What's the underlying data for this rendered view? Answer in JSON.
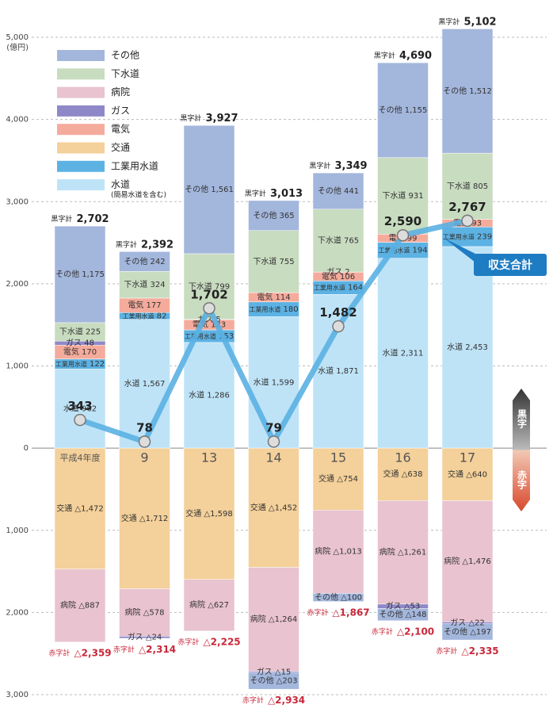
{
  "chart_data": {
    "type": "bar",
    "unit": "(億円)",
    "categories": [
      "平成4年度",
      "9",
      "13",
      "14",
      "15",
      "16",
      "17"
    ],
    "ylim": [
      -3000,
      5000
    ],
    "yticks": [
      {
        "value": 5000,
        "label": "5,000"
      },
      {
        "value": 4000,
        "label": "4,000"
      },
      {
        "value": 3000,
        "label": "3,000"
      },
      {
        "value": 2000,
        "label": "2,000"
      },
      {
        "value": 1000,
        "label": "1,000"
      },
      0,
      {
        "value": -1000,
        "label": "1,000"
      },
      {
        "value": -2000,
        "label": "2,000"
      },
      {
        "value": -3000,
        "label": "3,000"
      }
    ],
    "grid": true,
    "series": [
      {
        "name": "その他",
        "color": "#a3b6dc",
        "values": [
          1175,
          242,
          1561,
          365,
          441,
          1155,
          1512
        ],
        "value_labels": [
          "1,175",
          "242",
          "1,561",
          "365",
          "441",
          "1,155",
          "1,512"
        ],
        "deficit_values": [
          null,
          null,
          null,
          -203,
          -100,
          -148,
          -197
        ],
        "deficit_labels": [
          null,
          null,
          null,
          "△203",
          "△100",
          "△148",
          "△197"
        ]
      },
      {
        "name": "下水道",
        "color": "#c8dcc0",
        "values": [
          225,
          324,
          799,
          755,
          765,
          931,
          805
        ],
        "value_labels": [
          "225",
          "324",
          "799",
          "755",
          "765",
          "931",
          "805"
        ]
      },
      {
        "name": "病院",
        "color": "#e9c3cf",
        "deficit_values": [
          -887,
          -578,
          -627,
          -1264,
          -1013,
          -1261,
          -1476
        ],
        "deficit_labels": [
          "△887",
          "△578",
          "△627",
          "△1,264",
          "△1,013",
          "△1,261",
          "△1,476"
        ]
      },
      {
        "name": "ガス",
        "color": "#8f88c8",
        "values": [
          48,
          null,
          5,
          null,
          2,
          null,
          null
        ],
        "value_labels": [
          "48",
          null,
          "5",
          null,
          "2",
          null,
          null
        ],
        "deficit_values": [
          null,
          -24,
          null,
          -15,
          null,
          -53,
          -22
        ],
        "deficit_labels": [
          null,
          "△24",
          null,
          "△15",
          null,
          "△53",
          "△22"
        ]
      },
      {
        "name": "電気",
        "color": "#f5ab9c",
        "values": [
          170,
          177,
          123,
          114,
          106,
          99,
          93
        ],
        "value_labels": [
          "170",
          "177",
          "123",
          "114",
          "106",
          "99",
          "93"
        ]
      },
      {
        "name": "交通",
        "color": "#f4d09a",
        "deficit_values": [
          -1472,
          -1712,
          -1598,
          -1452,
          -754,
          -638,
          -640
        ],
        "deficit_labels": [
          "△1,472",
          "△1,712",
          "△1,598",
          "△1,452",
          "△754",
          "△638",
          "△640"
        ]
      },
      {
        "name": "工業用水道",
        "color": "#5cb2e3",
        "values": [
          122,
          82,
          153,
          180,
          164,
          194,
          239
        ],
        "value_labels": [
          "122",
          "82",
          "153",
          "180",
          "164",
          "194",
          "239"
        ]
      },
      {
        "name": "水道",
        "note": "(簡易水道を含む)",
        "color": "#bee3f7",
        "values": [
          962,
          1567,
          1286,
          1599,
          1871,
          2311,
          2453
        ],
        "value_labels": [
          "962",
          "1,567",
          "1,286",
          "1,599",
          "1,871",
          "2,311",
          "2,453"
        ]
      }
    ],
    "surplus_label": "黒字計",
    "surplus_totals": [
      2702,
      2392,
      3927,
      3013,
      3349,
      4690,
      5102
    ],
    "surplus_total_labels": [
      "2,702",
      "2,392",
      "3,927",
      "3,013",
      "3,349",
      "4,690",
      "5,102"
    ],
    "deficit_label": "赤字計",
    "deficit_totals": [
      -2359,
      -2314,
      -2225,
      -2934,
      -1867,
      -2100,
      -2335
    ],
    "deficit_total_labels": [
      "△2,359",
      "△2,314",
      "△2,225",
      "△2,934",
      "△1,867",
      "△2,100",
      "△2,335"
    ],
    "line": {
      "name": "収支合計",
      "color": "#5ab0e2",
      "values": [
        343,
        78,
        1702,
        79,
        1482,
        2590,
        2767
      ],
      "value_labels": [
        "343",
        "78",
        "1,702",
        "79",
        "1,482",
        "2,590",
        "2,767"
      ]
    },
    "side_labels": [
      "黒字",
      "赤字"
    ]
  }
}
